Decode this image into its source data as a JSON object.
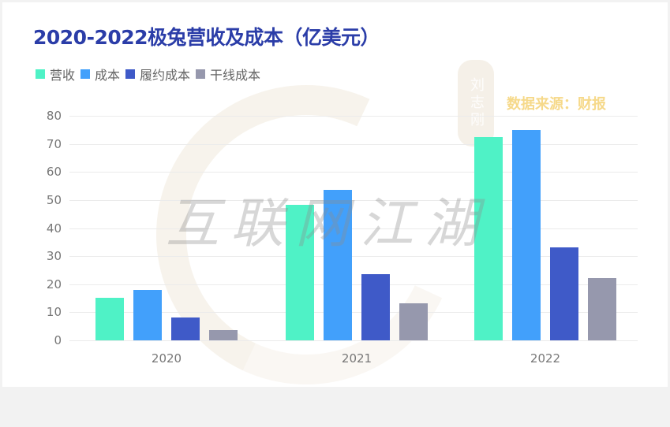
{
  "title": "2020-2022极兔营收及成本（亿美元）",
  "source_note": "数据来源：财报",
  "watermark": {
    "main": "互联网江湖",
    "seal": "刘志刚"
  },
  "legend": [
    {
      "label": "营收",
      "color": "#4ff2c6"
    },
    {
      "label": "成本",
      "color": "#42a0fb"
    },
    {
      "label": "履约成本",
      "color": "#3f5ac8"
    },
    {
      "label": "干线成本",
      "color": "#9698ad"
    }
  ],
  "chart_data": {
    "type": "bar",
    "title": "2020-2022极兔营收及成本（亿美元）",
    "xlabel": "",
    "ylabel": "",
    "ylim": [
      0,
      80
    ],
    "yticks": [
      0,
      10,
      20,
      30,
      40,
      50,
      60,
      70,
      80
    ],
    "grid": true,
    "legend_position": "top-left",
    "categories": [
      "2020",
      "2021",
      "2022"
    ],
    "series": [
      {
        "name": "营收",
        "color": "#4ff2c6",
        "values": [
          15.2,
          48.3,
          72.5
        ]
      },
      {
        "name": "成本",
        "color": "#42a0fb",
        "values": [
          18.0,
          53.7,
          75.0
        ]
      },
      {
        "name": "履约成本",
        "color": "#3f5ac8",
        "values": [
          8.1,
          23.6,
          33.1
        ]
      },
      {
        "name": "干线成本",
        "color": "#9698ad",
        "values": [
          3.6,
          13.2,
          22.2
        ]
      }
    ],
    "annotations": [
      "数据来源：财报"
    ]
  }
}
